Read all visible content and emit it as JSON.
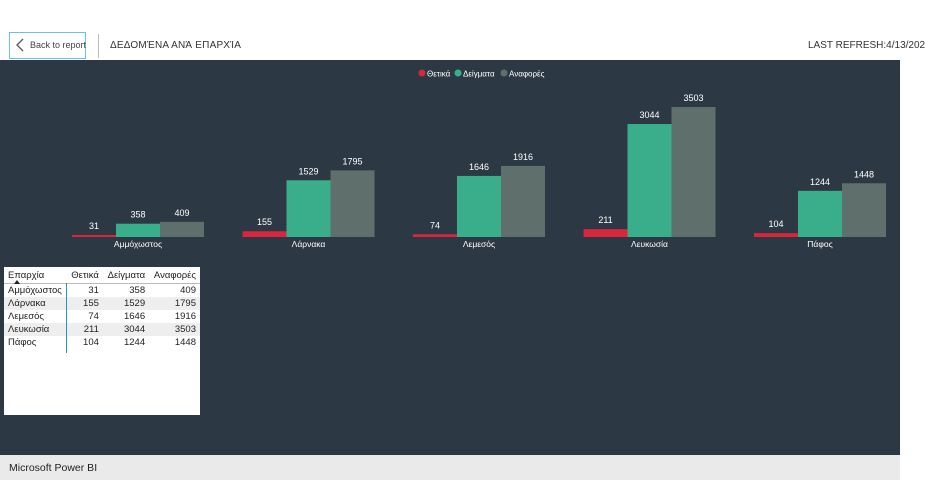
{
  "header": {
    "back_label": "Back to report",
    "title": "ΔΕΔΟΜΈΝΑ ΑΝΆ ΕΠΑΡΧΊΑ",
    "refresh": "LAST REFRESH:4/13/202"
  },
  "footer": {
    "brand": "Microsoft Power BI"
  },
  "colors": {
    "thetika": "#d7263d",
    "deigmata": "#3aae8a",
    "anafores": "#5f6f6c",
    "background": "#2c3945"
  },
  "table": {
    "columns": [
      "Επαρχία",
      "Θετικά",
      "Δείγματα",
      "Αναφορές"
    ],
    "rows": [
      [
        "Αμμόχωστος",
        "31",
        "358",
        "409"
      ],
      [
        "Λάρνακα",
        "155",
        "1529",
        "1795"
      ],
      [
        "Λεμεσός",
        "74",
        "1646",
        "1916"
      ],
      [
        "Λευκωσία",
        "211",
        "3044",
        "3503"
      ],
      [
        "Πάφος",
        "104",
        "1244",
        "1448"
      ]
    ]
  },
  "chart_data": {
    "type": "bar",
    "categories": [
      "Αμμόχωστος",
      "Λάρνακα",
      "Λεμεσός",
      "Λευκωσία",
      "Πάφος"
    ],
    "series": [
      {
        "name": "Θετικά",
        "values": [
          31,
          155,
          74,
          211,
          104
        ],
        "color": "#d7263d"
      },
      {
        "name": "Δείγματα",
        "values": [
          358,
          1529,
          1646,
          3044,
          1244
        ],
        "color": "#3aae8a"
      },
      {
        "name": "Αναφορές",
        "values": [
          409,
          1795,
          1916,
          3503,
          1448
        ],
        "color": "#5f6f6c"
      }
    ],
    "legend": "top-center",
    "data_labels": true,
    "grid": false,
    "ylim": [
      0,
      3503
    ]
  }
}
